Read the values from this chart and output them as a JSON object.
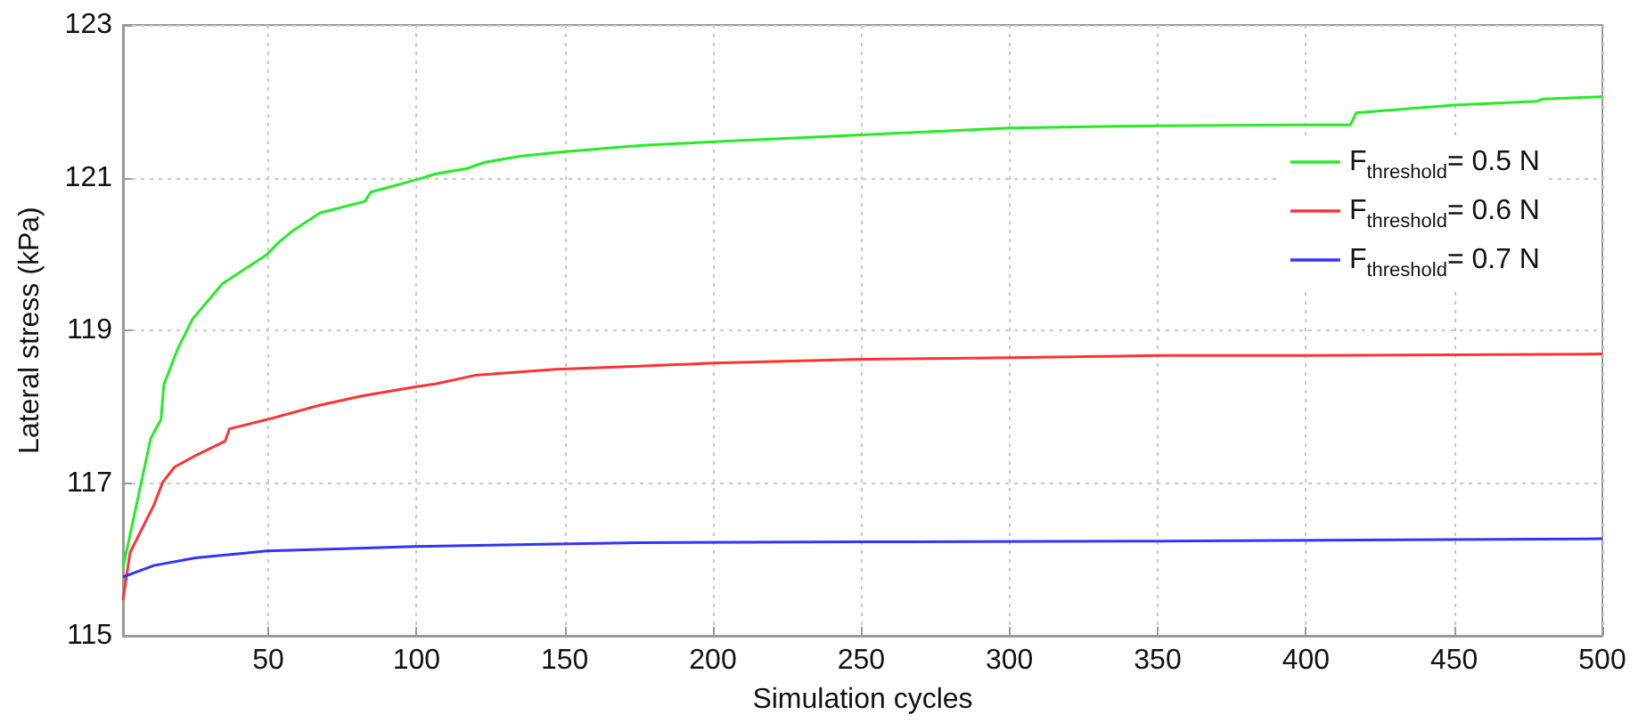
{
  "chart_data": {
    "type": "line",
    "xlabel": "Simulation cycles",
    "ylabel": "Lateral stress (kPa)",
    "xlim": [
      1,
      500
    ],
    "xticks": [
      50,
      100,
      150,
      200,
      250,
      300,
      350,
      400,
      450,
      500
    ],
    "ylim": [
      115,
      123
    ],
    "yticks": [
      115,
      117,
      119,
      121,
      123
    ],
    "grid": true,
    "legend": "top right",
    "marker": "none",
    "line_style": "solid",
    "series": [
      {
        "name": "F$_{threshold}$= 0.5 N",
        "color": "#22ee22",
        "x": [
          1,
          7.4,
          10.4,
          13.8,
          14.8,
          19.5,
          24.5,
          34.5,
          49.5,
          53.5,
          58.5,
          67.5,
          82.6,
          84.6,
          99.6,
          106.6,
          117,
          123,
          135,
          147,
          175,
          200,
          250,
          300,
          350,
          400,
          415,
          417,
          450,
          478,
          480,
          500
        ],
        "values": [
          115.89,
          117.05,
          117.59,
          117.83,
          118.29,
          118.76,
          119.15,
          119.61,
          119.99,
          120.15,
          120.31,
          120.54,
          120.69,
          120.81,
          120.97,
          121.05,
          121.12,
          121.2,
          121.28,
          121.33,
          121.42,
          121.47,
          121.56,
          121.65,
          121.68,
          121.69,
          121.69,
          121.85,
          121.95,
          122.0,
          122.03,
          122.06
        ]
      },
      {
        "name": "F$_{threshold}$= 0.6 N",
        "color": "#ff3333",
        "x": [
          1,
          3.4,
          11.4,
          14.4,
          18.4,
          25.5,
          35.5,
          36.9,
          49.5,
          67.5,
          81.5,
          99.6,
          106.6,
          119.6,
          147,
          175,
          200,
          250,
          300,
          350,
          400,
          500
        ],
        "values": [
          115.47,
          116.09,
          116.71,
          117.01,
          117.21,
          117.36,
          117.55,
          117.71,
          117.83,
          118.02,
          118.14,
          118.26,
          118.3,
          118.41,
          118.49,
          118.53,
          118.57,
          118.62,
          118.64,
          118.67,
          118.67,
          118.69
        ]
      },
      {
        "name": "F$_{threshold}$= 0.7 N",
        "color": "#3333ff",
        "x": [
          1,
          11.4,
          25.5,
          49.5,
          75.5,
          99.6,
          147,
          175,
          250,
          350,
          500
        ],
        "values": [
          115.77,
          115.92,
          116.02,
          116.11,
          116.14,
          116.17,
          116.2,
          116.22,
          116.23,
          116.24,
          116.27
        ]
      }
    ]
  }
}
